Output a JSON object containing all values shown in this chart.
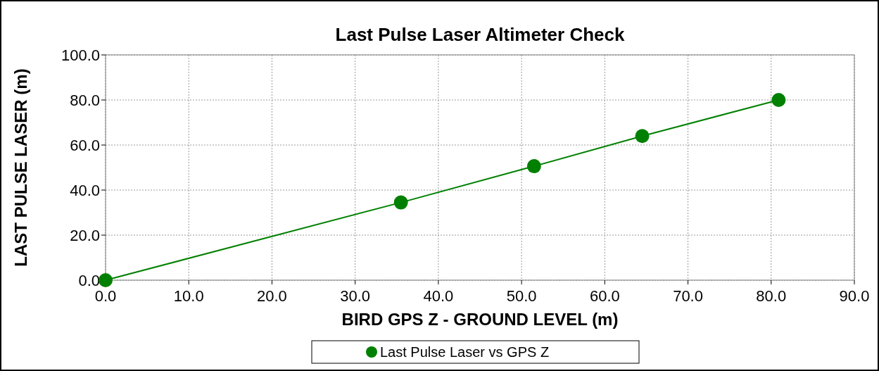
{
  "chart_data": {
    "type": "line",
    "title": "Last Pulse Laser Altimeter Check",
    "xlabel": "BIRD GPS Z - GROUND LEVEL (m)",
    "ylabel": "LAST PULSE LASER (m)",
    "x": [
      0,
      35.5,
      51.5,
      64.5,
      80.9
    ],
    "series": [
      {
        "name": "Last Pulse Laser vs GPS Z",
        "color": "#008000",
        "values": [
          0,
          34.5,
          50.6,
          64.0,
          80.0
        ]
      }
    ],
    "xlim": [
      0,
      90
    ],
    "xticks": [
      {
        "value": 0,
        "label": "0.0"
      },
      {
        "value": 10,
        "label": "10.0"
      },
      {
        "value": 20,
        "label": "20.0"
      },
      {
        "value": 30,
        "label": "30.0"
      },
      {
        "value": 40,
        "label": "40.0"
      },
      {
        "value": 50,
        "label": "50.0"
      },
      {
        "value": 60,
        "label": "60.0"
      },
      {
        "value": 70,
        "label": "70.0"
      },
      {
        "value": 80,
        "label": "80.0"
      },
      {
        "value": 90,
        "label": "90.0"
      }
    ],
    "ylim": [
      0,
      100
    ],
    "yticks": [
      {
        "value": 0,
        "label": "0.0"
      },
      {
        "value": 20,
        "label": "20.0"
      },
      {
        "value": 40,
        "label": "40.0"
      },
      {
        "value": 60,
        "label": "60.0"
      },
      {
        "value": 80,
        "label": "80.0"
      },
      {
        "value": 100,
        "label": "100.0"
      }
    ],
    "grid": true,
    "legend": "bottom",
    "marker": "circle",
    "line_style": "solid"
  }
}
